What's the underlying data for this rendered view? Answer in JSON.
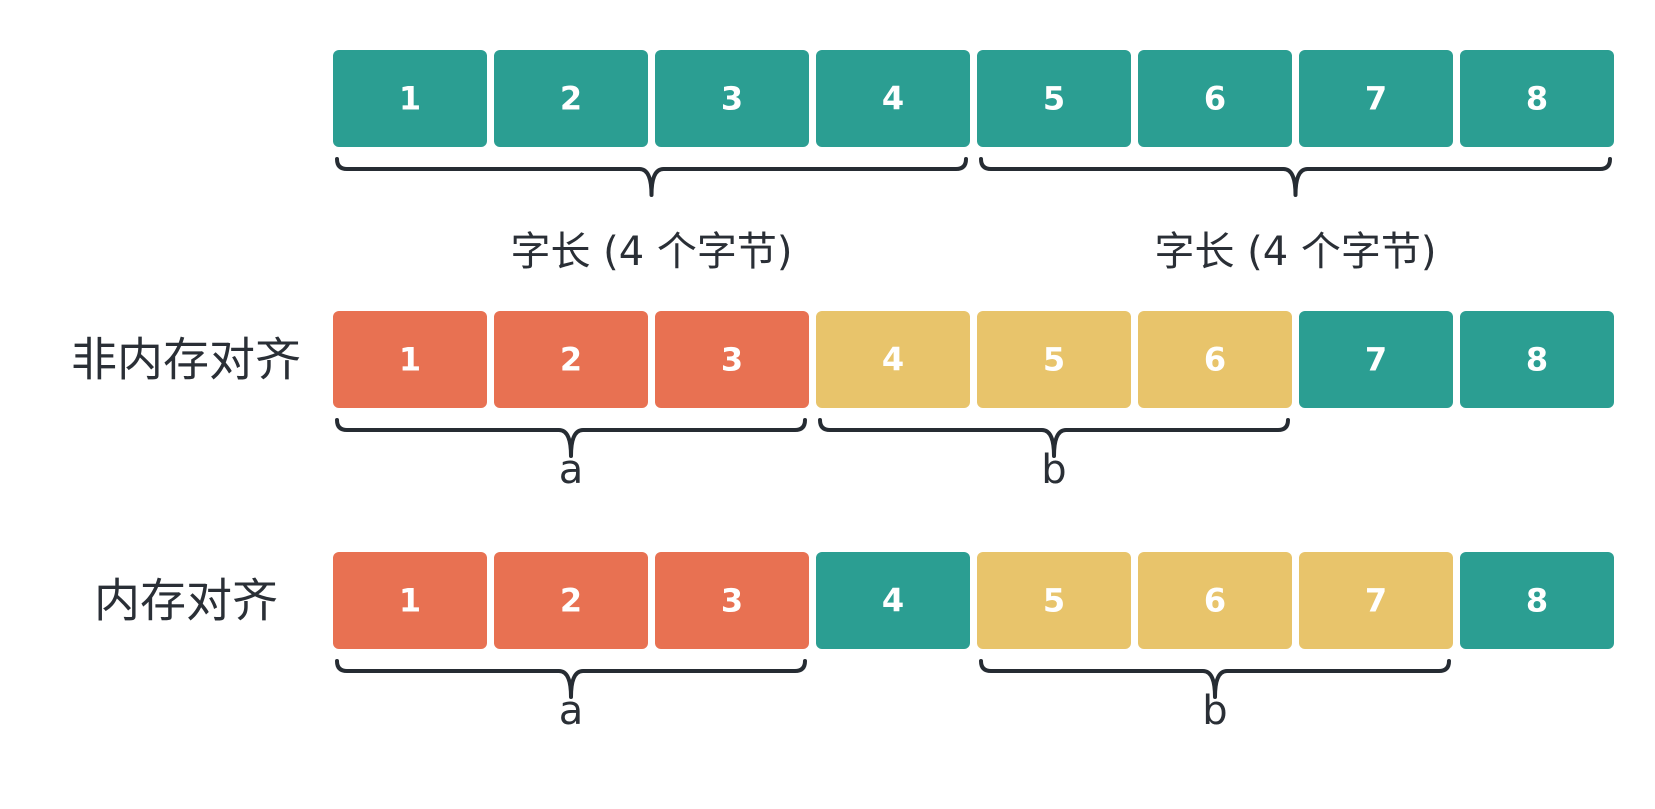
{
  "colors": {
    "teal": "#2b9e92",
    "orange": "#e87152",
    "yellow": "#e8c46b",
    "text": "#2a2f36",
    "brace": "#262c33"
  },
  "rows": [
    {
      "id": "word-row",
      "label": "",
      "cells": [
        {
          "value": "1",
          "color": "teal"
        },
        {
          "value": "2",
          "color": "teal"
        },
        {
          "value": "3",
          "color": "teal"
        },
        {
          "value": "4",
          "color": "teal"
        },
        {
          "value": "5",
          "color": "teal"
        },
        {
          "value": "6",
          "color": "teal"
        },
        {
          "value": "7",
          "color": "teal"
        },
        {
          "value": "8",
          "color": "teal"
        }
      ],
      "braces": [
        {
          "from": 1,
          "to": 4,
          "label": "字长 (4 个字节)",
          "kind": "caption"
        },
        {
          "from": 5,
          "to": 8,
          "label": "字长 (4 个字节)",
          "kind": "caption"
        }
      ]
    },
    {
      "id": "unaligned-row",
      "label": "非内存对齐",
      "cells": [
        {
          "value": "1",
          "color": "orange"
        },
        {
          "value": "2",
          "color": "orange"
        },
        {
          "value": "3",
          "color": "orange"
        },
        {
          "value": "4",
          "color": "yellow"
        },
        {
          "value": "5",
          "color": "yellow"
        },
        {
          "value": "6",
          "color": "yellow"
        },
        {
          "value": "7",
          "color": "teal"
        },
        {
          "value": "8",
          "color": "teal"
        }
      ],
      "braces": [
        {
          "from": 1,
          "to": 3,
          "label": "a",
          "kind": "var"
        },
        {
          "from": 4,
          "to": 6,
          "label": "b",
          "kind": "var"
        }
      ]
    },
    {
      "id": "aligned-row",
      "label": "内存对齐",
      "cells": [
        {
          "value": "1",
          "color": "orange"
        },
        {
          "value": "2",
          "color": "orange"
        },
        {
          "value": "3",
          "color": "orange"
        },
        {
          "value": "4",
          "color": "teal"
        },
        {
          "value": "5",
          "color": "yellow"
        },
        {
          "value": "6",
          "color": "yellow"
        },
        {
          "value": "7",
          "color": "yellow"
        },
        {
          "value": "8",
          "color": "teal"
        }
      ],
      "braces": [
        {
          "from": 1,
          "to": 3,
          "label": "a",
          "kind": "var"
        },
        {
          "from": 5,
          "to": 7,
          "label": "b",
          "kind": "var"
        }
      ]
    }
  ]
}
